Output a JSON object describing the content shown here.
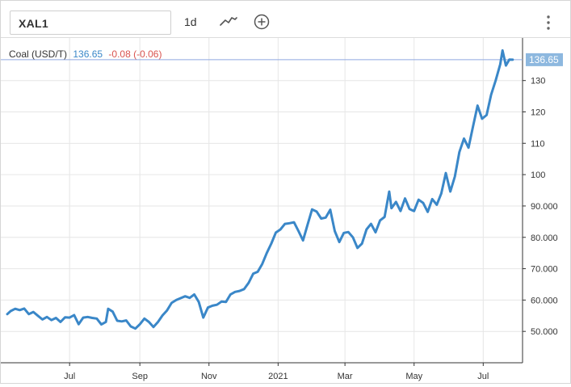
{
  "toolbar": {
    "symbol": "XAL1",
    "interval": "1d",
    "chart_type_icon": "line-chart-icon",
    "add_icon": "plus-circle-icon",
    "menu_icon": "vertical-dots-icon"
  },
  "legend": {
    "series": "Coal (USD/T)",
    "price": "136.65",
    "change": "-0.08 (-0.06)",
    "price_color": "#3a87c8",
    "change_color": "#d9534f"
  },
  "colors": {
    "line": "#3a87c8",
    "last_price_bg": "#8db8df",
    "grid": "#e6e6e6"
  },
  "chart_data": {
    "type": "line",
    "title": "",
    "xlabel": "",
    "ylabel": "",
    "grid": true,
    "legend_position": "top-left",
    "ylim": [
      40,
      141
    ],
    "y_ticks": [
      {
        "v": 50,
        "label": "50.000"
      },
      {
        "v": 60,
        "label": "60.000"
      },
      {
        "v": 70,
        "label": "70.000"
      },
      {
        "v": 80,
        "label": "80.000"
      },
      {
        "v": 90,
        "label": "90.000"
      },
      {
        "v": 100,
        "label": "100"
      },
      {
        "v": 110,
        "label": "110"
      },
      {
        "v": 120,
        "label": "120"
      },
      {
        "v": 130,
        "label": "130"
      }
    ],
    "x_ticks": [
      {
        "date": "2020-07-01",
        "label": "Jul"
      },
      {
        "date": "2020-09-01",
        "label": "Sep"
      },
      {
        "date": "2020-11-01",
        "label": "Nov"
      },
      {
        "date": "2021-01-01",
        "label": "2021"
      },
      {
        "date": "2021-03-01",
        "label": "Mar"
      },
      {
        "date": "2021-05-01",
        "label": "May"
      },
      {
        "date": "2021-07-01",
        "label": "Jul"
      }
    ],
    "x_range": [
      "2020-05-07",
      "2021-07-30"
    ],
    "last_value": 136.65,
    "last_label": "136.65",
    "series": [
      {
        "name": "Coal (USD/T)",
        "points": [
          [
            "2020-05-07",
            55.5
          ],
          [
            "2020-05-10",
            56.5
          ],
          [
            "2020-05-14",
            57.2
          ],
          [
            "2020-05-18",
            56.8
          ],
          [
            "2020-05-22",
            57.3
          ],
          [
            "2020-05-26",
            55.5
          ],
          [
            "2020-05-30",
            56.2
          ],
          [
            "2020-06-03",
            55.0
          ],
          [
            "2020-06-07",
            53.8
          ],
          [
            "2020-06-11",
            54.6
          ],
          [
            "2020-06-15",
            53.6
          ],
          [
            "2020-06-19",
            54.3
          ],
          [
            "2020-06-23",
            53.0
          ],
          [
            "2020-06-27",
            54.5
          ],
          [
            "2020-07-01",
            54.4
          ],
          [
            "2020-07-05",
            55.2
          ],
          [
            "2020-07-09",
            52.3
          ],
          [
            "2020-07-13",
            54.4
          ],
          [
            "2020-07-17",
            54.6
          ],
          [
            "2020-07-21",
            54.3
          ],
          [
            "2020-07-25",
            54.1
          ],
          [
            "2020-07-29",
            52.2
          ],
          [
            "2020-08-02",
            53.0
          ],
          [
            "2020-08-04",
            57.2
          ],
          [
            "2020-08-08",
            56.3
          ],
          [
            "2020-08-12",
            53.4
          ],
          [
            "2020-08-16",
            53.2
          ],
          [
            "2020-08-20",
            53.5
          ],
          [
            "2020-08-24",
            51.6
          ],
          [
            "2020-08-28",
            50.9
          ],
          [
            "2020-09-01",
            52.3
          ],
          [
            "2020-09-05",
            54.1
          ],
          [
            "2020-09-09",
            53.0
          ],
          [
            "2020-09-13",
            51.4
          ],
          [
            "2020-09-17",
            53.0
          ],
          [
            "2020-09-21",
            55.1
          ],
          [
            "2020-09-25",
            56.7
          ],
          [
            "2020-09-29",
            59.1
          ],
          [
            "2020-10-03",
            60.0
          ],
          [
            "2020-10-07",
            60.6
          ],
          [
            "2020-10-11",
            61.2
          ],
          [
            "2020-10-15",
            60.7
          ],
          [
            "2020-10-19",
            61.8
          ],
          [
            "2020-10-23",
            59.4
          ],
          [
            "2020-10-27",
            54.4
          ],
          [
            "2020-10-31",
            57.6
          ],
          [
            "2020-11-04",
            58.2
          ],
          [
            "2020-11-08",
            58.5
          ],
          [
            "2020-11-12",
            59.5
          ],
          [
            "2020-11-16",
            59.4
          ],
          [
            "2020-11-20",
            61.8
          ],
          [
            "2020-11-24",
            62.6
          ],
          [
            "2020-11-28",
            62.9
          ],
          [
            "2020-12-02",
            63.5
          ],
          [
            "2020-12-06",
            65.5
          ],
          [
            "2020-12-10",
            68.4
          ],
          [
            "2020-12-14",
            69.0
          ],
          [
            "2020-12-18",
            71.5
          ],
          [
            "2020-12-22",
            75.0
          ],
          [
            "2020-12-26",
            78.0
          ],
          [
            "2020-12-30",
            81.5
          ],
          [
            "2021-01-03",
            82.5
          ],
          [
            "2021-01-07",
            84.3
          ],
          [
            "2021-01-11",
            84.5
          ],
          [
            "2021-01-15",
            84.8
          ],
          [
            "2021-01-19",
            82.0
          ],
          [
            "2021-01-23",
            79.0
          ],
          [
            "2021-01-27",
            84.0
          ],
          [
            "2021-01-31",
            88.9
          ],
          [
            "2021-02-04",
            88.2
          ],
          [
            "2021-02-08",
            86.0
          ],
          [
            "2021-02-12",
            86.3
          ],
          [
            "2021-02-16",
            88.8
          ],
          [
            "2021-02-20",
            82.0
          ],
          [
            "2021-02-24",
            78.5
          ],
          [
            "2021-02-28",
            81.4
          ],
          [
            "2021-03-04",
            81.7
          ],
          [
            "2021-03-08",
            80.0
          ],
          [
            "2021-03-12",
            76.6
          ],
          [
            "2021-03-16",
            78.0
          ],
          [
            "2021-03-20",
            82.5
          ],
          [
            "2021-03-24",
            84.3
          ],
          [
            "2021-03-28",
            81.6
          ],
          [
            "2021-04-01",
            85.4
          ],
          [
            "2021-04-05",
            86.5
          ],
          [
            "2021-04-09",
            94.6
          ],
          [
            "2021-04-11",
            89.3
          ],
          [
            "2021-04-15",
            91.3
          ],
          [
            "2021-04-19",
            88.4
          ],
          [
            "2021-04-23",
            92.4
          ],
          [
            "2021-04-27",
            89.0
          ],
          [
            "2021-05-01",
            88.4
          ],
          [
            "2021-05-05",
            92.0
          ],
          [
            "2021-05-09",
            91.0
          ],
          [
            "2021-05-13",
            88.1
          ],
          [
            "2021-05-17",
            92.2
          ],
          [
            "2021-05-21",
            90.4
          ],
          [
            "2021-05-25",
            94.0
          ],
          [
            "2021-05-29",
            100.5
          ],
          [
            "2021-06-02",
            94.6
          ],
          [
            "2021-06-06",
            99.4
          ],
          [
            "2021-06-10",
            107.2
          ],
          [
            "2021-06-14",
            111.5
          ],
          [
            "2021-06-18",
            108.6
          ],
          [
            "2021-06-22",
            115.4
          ],
          [
            "2021-06-26",
            122.0
          ],
          [
            "2021-06-30",
            117.8
          ],
          [
            "2021-07-04",
            119.0
          ],
          [
            "2021-07-08",
            125.5
          ],
          [
            "2021-07-12",
            130.0
          ],
          [
            "2021-07-16",
            135.2
          ],
          [
            "2021-07-18",
            139.6
          ],
          [
            "2021-07-21",
            134.8
          ],
          [
            "2021-07-24",
            136.7
          ],
          [
            "2021-07-27",
            136.65
          ]
        ]
      }
    ]
  }
}
